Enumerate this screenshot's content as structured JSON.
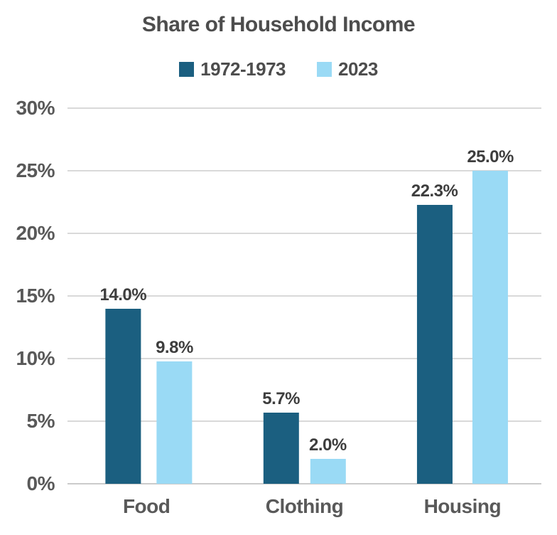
{
  "title": "Share of Household Income",
  "legend": {
    "items": [
      {
        "label": "1972-1973",
        "color": "#1B5F80"
      },
      {
        "label": "2023",
        "color": "#9ADAF5"
      }
    ]
  },
  "colors": {
    "series_dark": "#1B5F80",
    "series_light": "#9ADAF5",
    "gridline": "#D9D9D9",
    "baseline": "#CBCBCB",
    "title_text": "#4D4D4D",
    "tick_text": "#595959",
    "data_label_text": "#3D3D3D",
    "background": "#FFFFFF"
  },
  "chart_data": {
    "type": "bar",
    "title": "Share of Household Income",
    "categories": [
      "Food",
      "Clothing",
      "Housing"
    ],
    "series": [
      {
        "name": "1972-1973",
        "color": "#1B5F80",
        "values": [
          14.0,
          5.7,
          22.3
        ],
        "labels": [
          "14.0%",
          "5.7%",
          "22.3%"
        ]
      },
      {
        "name": "2023",
        "color": "#9ADAF5",
        "values": [
          9.8,
          2.0,
          25.0
        ],
        "labels": [
          "9.8%",
          "2.0%",
          "25.0%"
        ]
      }
    ],
    "xlabel": "",
    "ylabel": "",
    "ylim": [
      0,
      30
    ],
    "ytick_step": 5,
    "ytick_labels": [
      "0%",
      "5%",
      "10%",
      "15%",
      "20%",
      "25%",
      "30%"
    ],
    "grid": true,
    "legend_position": "top"
  }
}
